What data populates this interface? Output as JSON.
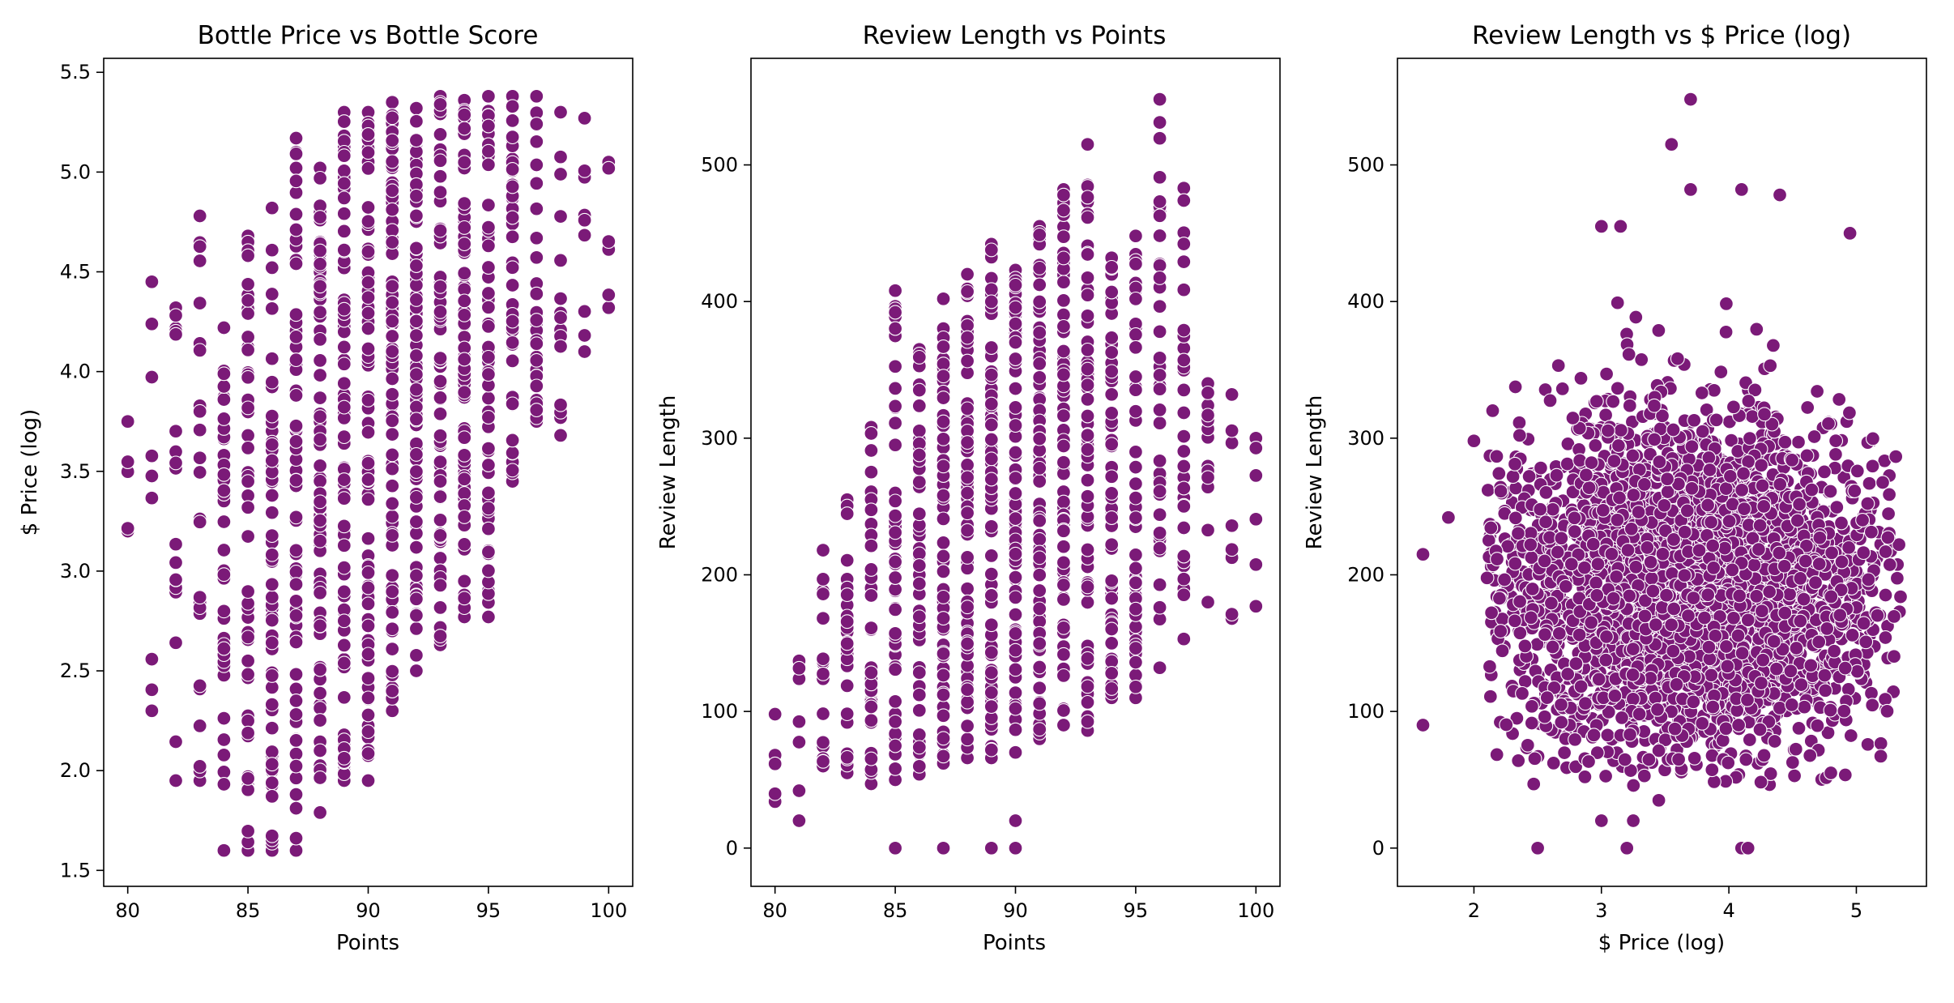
{
  "colors": {
    "point": "#7b1a78",
    "point_edge": "#ffffff"
  },
  "chart_data": [
    {
      "type": "scatter",
      "title": "Bottle Price vs Bottle Score",
      "xlabel": "Points",
      "ylabel": "$ Price (log)",
      "xlim": [
        79,
        101
      ],
      "ylim": [
        1.42,
        5.57
      ],
      "xticks": [
        80,
        85,
        90,
        95,
        100
      ],
      "yticks": [
        1.5,
        2.0,
        2.5,
        3.0,
        3.5,
        4.0,
        4.5,
        5.0,
        5.5
      ],
      "xtick_labels": [
        "80",
        "85",
        "90",
        "95",
        "100"
      ],
      "ytick_labels": [
        "1.5",
        "2.0",
        "2.5",
        "3.0",
        "3.5",
        "4.0",
        "4.5",
        "5.0",
        "5.5"
      ],
      "grid": false,
      "columns": [
        {
          "x": 80,
          "y_min": 3.2,
          "y_max": 3.75,
          "count": 4
        },
        {
          "x": 81,
          "y_min": 2.3,
          "y_max": 4.45,
          "count": 7
        },
        {
          "x": 82,
          "y_min": 1.95,
          "y_max": 4.32,
          "count": 16
        },
        {
          "x": 83,
          "y_min": 1.95,
          "y_max": 4.78,
          "count": 22
        },
        {
          "x": 84,
          "y_min": 1.6,
          "y_max": 4.22,
          "count": 38
        },
        {
          "x": 85,
          "y_min": 1.6,
          "y_max": 4.68,
          "count": 48
        },
        {
          "x": 86,
          "y_min": 1.6,
          "y_max": 4.82,
          "count": 60
        },
        {
          "x": 87,
          "y_min": 1.6,
          "y_max": 5.17,
          "count": 70
        },
        {
          "x": 88,
          "y_min": 1.79,
          "y_max": 5.02,
          "count": 80
        },
        {
          "x": 89,
          "y_min": 1.95,
          "y_max": 5.3,
          "count": 85
        },
        {
          "x": 90,
          "y_min": 1.95,
          "y_max": 5.3,
          "count": 90
        },
        {
          "x": 91,
          "y_min": 2.3,
          "y_max": 5.35,
          "count": 88
        },
        {
          "x": 92,
          "y_min": 2.5,
          "y_max": 5.32,
          "count": 85
        },
        {
          "x": 93,
          "y_min": 2.63,
          "y_max": 5.38,
          "count": 80
        },
        {
          "x": 94,
          "y_min": 2.77,
          "y_max": 5.36,
          "count": 70
        },
        {
          "x": 95,
          "y_min": 2.77,
          "y_max": 5.38,
          "count": 60
        },
        {
          "x": 96,
          "y_min": 3.45,
          "y_max": 5.38,
          "count": 42
        },
        {
          "x": 97,
          "y_min": 3.75,
          "y_max": 5.38,
          "count": 28
        },
        {
          "x": 98,
          "y_min": 3.68,
          "y_max": 5.3,
          "count": 14
        },
        {
          "x": 99,
          "y_min": 4.1,
          "y_max": 5.27,
          "count": 7
        },
        {
          "x": 100,
          "y_min": 4.32,
          "y_max": 5.05,
          "count": 4
        }
      ]
    },
    {
      "type": "scatter",
      "title": "Review Length vs Points",
      "xlabel": "Points",
      "ylabel": "Review Length",
      "xlim": [
        79,
        101
      ],
      "ylim": [
        -28,
        578
      ],
      "xticks": [
        80,
        85,
        90,
        95,
        100
      ],
      "yticks": [
        0,
        100,
        200,
        300,
        400,
        500
      ],
      "xtick_labels": [
        "80",
        "85",
        "90",
        "95",
        "100"
      ],
      "ytick_labels": [
        "0",
        "100",
        "200",
        "300",
        "400",
        "500"
      ],
      "grid": false,
      "columns": [
        {
          "x": 80,
          "y_min": 34,
          "y_max": 98,
          "count": 3
        },
        {
          "x": 81,
          "y_min": 20,
          "y_max": 137,
          "count": 5
        },
        {
          "x": 82,
          "y_min": 60,
          "y_max": 218,
          "count": 16
        },
        {
          "x": 83,
          "y_min": 55,
          "y_max": 255,
          "count": 25
        },
        {
          "x": 84,
          "y_min": 47,
          "y_max": 308,
          "count": 40
        },
        {
          "x": 85,
          "y_min": 50,
          "y_max": 408,
          "count": 50
        },
        {
          "x": 86,
          "y_min": 54,
          "y_max": 365,
          "count": 60
        },
        {
          "x": 87,
          "y_min": 62,
          "y_max": 402,
          "count": 65
        },
        {
          "x": 88,
          "y_min": 66,
          "y_max": 420,
          "count": 70
        },
        {
          "x": 89,
          "y_min": 66,
          "y_max": 442,
          "count": 75
        },
        {
          "x": 90,
          "y_min": 70,
          "y_max": 423,
          "count": 78
        },
        {
          "x": 91,
          "y_min": 80,
          "y_max": 455,
          "count": 78
        },
        {
          "x": 92,
          "y_min": 90,
          "y_max": 482,
          "count": 75
        },
        {
          "x": 93,
          "y_min": 86,
          "y_max": 515,
          "count": 70
        },
        {
          "x": 94,
          "y_min": 110,
          "y_max": 432,
          "count": 60
        },
        {
          "x": 95,
          "y_min": 110,
          "y_max": 448,
          "count": 55
        },
        {
          "x": 96,
          "y_min": 132,
          "y_max": 548,
          "count": 40
        },
        {
          "x": 97,
          "y_min": 153,
          "y_max": 483,
          "count": 30
        },
        {
          "x": 98,
          "y_min": 180,
          "y_max": 340,
          "count": 15
        },
        {
          "x": 99,
          "y_min": 168,
          "y_max": 332,
          "count": 6
        },
        {
          "x": 100,
          "y_min": 177,
          "y_max": 300,
          "count": 4
        }
      ],
      "outliers": [
        {
          "x": 85,
          "y": 0
        },
        {
          "x": 87,
          "y": 0
        },
        {
          "x": 89,
          "y": 0
        },
        {
          "x": 90,
          "y": 0
        },
        {
          "x": 90,
          "y": 20
        }
      ]
    },
    {
      "type": "scatter",
      "title": "Review Length vs $ Price (log)",
      "xlabel": "$ Price (log)",
      "ylabel": "Review Length",
      "xlim": [
        1.4,
        5.55
      ],
      "ylim": [
        -28,
        578
      ],
      "xticks": [
        2,
        3,
        4,
        5
      ],
      "yticks": [
        0,
        100,
        200,
        300,
        400,
        500
      ],
      "xtick_labels": [
        "2",
        "3",
        "4",
        "5"
      ],
      "ytick_labels": [
        "0",
        "100",
        "200",
        "300",
        "400",
        "500"
      ],
      "grid": false,
      "point_count": 3500,
      "cluster": {
        "x_center": 3.7,
        "x_spread": 0.75,
        "y_center": 190,
        "y_spread": 65
      },
      "notable_points": [
        {
          "x": 3.7,
          "y": 548
        },
        {
          "x": 3.55,
          "y": 515
        },
        {
          "x": 3.7,
          "y": 482
        },
        {
          "x": 4.1,
          "y": 482
        },
        {
          "x": 4.4,
          "y": 478
        },
        {
          "x": 4.95,
          "y": 450
        },
        {
          "x": 3.0,
          "y": 455
        },
        {
          "x": 3.15,
          "y": 455
        },
        {
          "x": 1.6,
          "y": 90
        },
        {
          "x": 1.6,
          "y": 215
        },
        {
          "x": 1.8,
          "y": 242
        },
        {
          "x": 2.0,
          "y": 298
        },
        {
          "x": 2.5,
          "y": 0
        },
        {
          "x": 3.2,
          "y": 0
        },
        {
          "x": 4.1,
          "y": 0
        },
        {
          "x": 4.15,
          "y": 0
        },
        {
          "x": 3.0,
          "y": 20
        },
        {
          "x": 3.25,
          "y": 20
        },
        {
          "x": 4.8,
          "y": 55
        },
        {
          "x": 3.45,
          "y": 35
        }
      ]
    }
  ]
}
